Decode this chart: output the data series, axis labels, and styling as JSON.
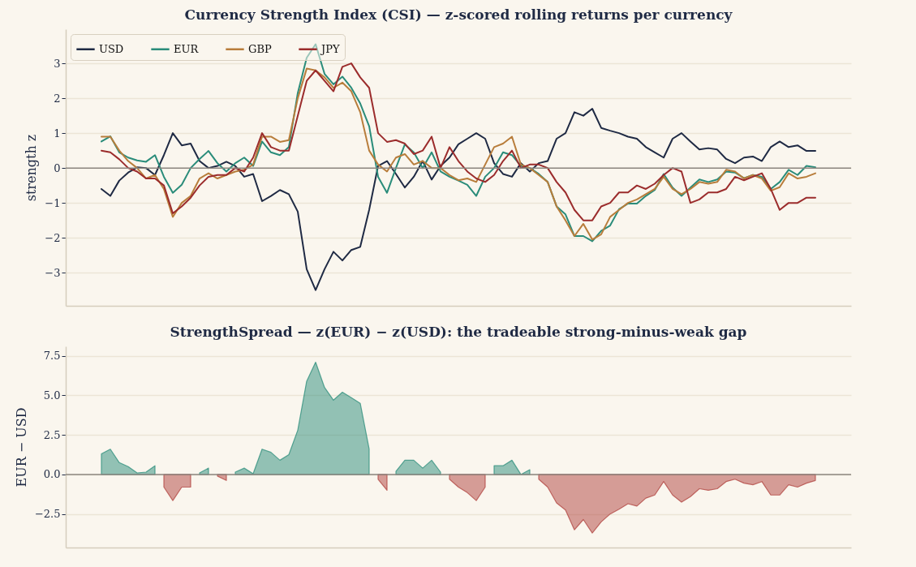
{
  "chart_data": [
    {
      "type": "line",
      "title": "Currency Strength Index (CSI) — z-scored rolling returns per currency",
      "ylabel": "strength z",
      "categories": [
        null,
        null,
        null,
        null,
        null,
        null,
        null,
        null,
        null,
        null,
        null,
        null,
        null,
        null,
        null,
        null,
        null,
        null,
        null,
        null,
        null,
        null,
        null,
        null,
        null,
        null,
        null,
        null,
        null,
        null,
        null,
        null,
        null,
        null,
        null,
        null,
        null,
        null,
        null,
        null,
        null,
        null,
        null,
        null,
        null,
        null,
        null,
        null,
        null,
        null,
        null,
        null,
        null,
        null,
        null,
        null,
        null,
        null,
        null,
        null,
        null,
        null,
        null,
        null,
        null,
        null,
        null,
        null,
        null,
        null,
        null,
        null,
        null,
        null,
        null,
        null,
        null,
        null,
        null,
        null,
        null
      ],
      "ylim": [
        -3.95,
        3.98
      ],
      "yticks": [
        -3,
        -2,
        -1,
        0,
        1,
        2,
        3
      ],
      "grid": "y",
      "legend": "top left",
      "tick_labels": "y",
      "ref_lines": [
        {
          "axis": "y",
          "value": 0,
          "color": "#8c8680"
        }
      ],
      "series": [
        {
          "name": "USD",
          "color": "#1f2a44",
          "values": [
            -0.6,
            -0.8,
            -0.36,
            -0.13,
            0.02,
            0,
            -0.2,
            0.37,
            1.0,
            0.65,
            0.7,
            0.2,
            0,
            0.06,
            0.18,
            0.06,
            -0.25,
            -0.17,
            -0.95,
            -0.8,
            -0.63,
            -0.75,
            -1.25,
            -2.9,
            -3.5,
            -2.9,
            -2.4,
            -2.65,
            -2.35,
            -2.26,
            -1.2,
            0.06,
            0.2,
            -0.17,
            -0.56,
            -0.25,
            0.2,
            -0.33,
            0.06,
            0.3,
            0.68,
            0.84,
            1.0,
            0.84,
            0.14,
            -0.17,
            -0.25,
            0.14,
            -0.1,
            0.14,
            0.2,
            0.84,
            1.0,
            1.6,
            1.5,
            1.7,
            1.15,
            1.07,
            1.0,
            0.9,
            0.84,
            0.6,
            0.45,
            0.3,
            0.84,
            1.0,
            0.76,
            0.53,
            0.57,
            0.53,
            0.26,
            0.14,
            0.3,
            0.33,
            0.2,
            0.6,
            0.76,
            0.6,
            0.65,
            0.49,
            0.49
          ]
        },
        {
          "name": "EUR",
          "color": "#2a8c7a",
          "values": [
            0.76,
            0.91,
            0.45,
            0.3,
            0.22,
            0.18,
            0.37,
            -0.25,
            -0.71,
            -0.48,
            0,
            0.26,
            0.49,
            0.14,
            -0.1,
            0.14,
            0.3,
            0.06,
            0.76,
            0.45,
            0.37,
            0.6,
            2.15,
            3.16,
            3.55,
            2.7,
            2.4,
            2.62,
            2.3,
            1.85,
            1.2,
            -0.25,
            -0.71,
            0,
            0.68,
            0.45,
            0,
            0.45,
            -0.1,
            -0.25,
            -0.36,
            -0.48,
            -0.8,
            -0.25,
            0,
            0.45,
            0.37,
            0.06,
            0,
            -0.17,
            -0.4,
            -1.1,
            -1.33,
            -1.95,
            -1.95,
            -2.1,
            -1.8,
            -1.65,
            -1.18,
            -1.02,
            -1.02,
            -0.8,
            -0.63,
            -0.17,
            -0.56,
            -0.8,
            -0.56,
            -0.33,
            -0.4,
            -0.33,
            -0.1,
            -0.13,
            -0.29,
            -0.2,
            -0.25,
            -0.6,
            -0.4,
            -0.05,
            -0.2,
            0.06,
            0.02
          ]
        },
        {
          "name": "GBP",
          "color": "#b87d3b",
          "values": [
            0.9,
            0.9,
            0.5,
            0.2,
            0,
            -0.3,
            -0.2,
            -0.6,
            -1.4,
            -1.0,
            -0.8,
            -0.3,
            -0.15,
            -0.3,
            -0.2,
            -0.1,
            -0.05,
            0.1,
            0.9,
            0.9,
            0.75,
            0.8,
            2.0,
            2.85,
            2.8,
            2.6,
            2.3,
            2.45,
            2.2,
            1.6,
            0.5,
            0.1,
            -0.1,
            0.3,
            0.4,
            0.1,
            0.2,
            0,
            0,
            -0.2,
            -0.35,
            -0.3,
            -0.4,
            0.1,
            0.6,
            0.7,
            0.9,
            0.1,
            0,
            -0.2,
            -0.4,
            -1.1,
            -1.5,
            -1.95,
            -1.6,
            -2.05,
            -1.9,
            -1.4,
            -1.2,
            -1.0,
            -0.9,
            -0.75,
            -0.6,
            -0.25,
            -0.6,
            -0.75,
            -0.6,
            -0.4,
            -0.45,
            -0.4,
            -0.05,
            -0.1,
            -0.3,
            -0.2,
            -0.3,
            -0.65,
            -0.55,
            -0.15,
            -0.3,
            -0.25,
            -0.15
          ]
        },
        {
          "name": "JPY",
          "color": "#9b2c2c",
          "values": [
            0.5,
            0.45,
            0.25,
            0,
            -0.1,
            -0.3,
            -0.3,
            -0.5,
            -1.3,
            -1.1,
            -0.85,
            -0.5,
            -0.25,
            -0.2,
            -0.2,
            0,
            -0.1,
            0.3,
            1.0,
            0.6,
            0.5,
            0.5,
            1.5,
            2.5,
            2.8,
            2.5,
            2.2,
            2.9,
            3.0,
            2.6,
            2.3,
            1.0,
            0.75,
            0.8,
            0.7,
            0.4,
            0.5,
            0.9,
            0,
            0.6,
            0.2,
            -0.1,
            -0.3,
            -0.4,
            -0.2,
            0.2,
            0.5,
            0,
            0.1,
            0.1,
            0,
            -0.4,
            -0.7,
            -1.2,
            -1.5,
            -1.5,
            -1.1,
            -1.0,
            -0.7,
            -0.7,
            -0.5,
            -0.6,
            -0.45,
            -0.2,
            0,
            -0.1,
            -1.0,
            -0.9,
            -0.7,
            -0.7,
            -0.6,
            -0.25,
            -0.35,
            -0.25,
            -0.15,
            -0.6,
            -1.2,
            -1.0,
            -1.0,
            -0.85,
            -0.85
          ]
        }
      ]
    },
    {
      "type": "area",
      "title": "StrengthSpread — z(EUR) − z(USD): the tradeable strong-minus-weak gap",
      "ylabel": "EUR − USD",
      "categories": [
        null,
        null,
        null,
        null,
        null,
        null,
        null,
        null,
        null,
        null,
        null,
        null,
        null,
        null,
        null,
        null,
        null,
        null,
        null,
        null,
        null,
        null,
        null,
        null,
        null,
        null,
        null,
        null,
        null,
        null,
        null,
        null,
        null,
        null,
        null,
        null,
        null,
        null,
        null,
        null,
        null,
        null,
        null,
        null,
        null,
        null,
        null,
        null,
        null,
        null,
        null,
        null,
        null,
        null,
        null,
        null,
        null,
        null,
        null,
        null,
        null,
        null,
        null,
        null,
        null,
        null,
        null,
        null,
        null,
        null,
        null,
        null,
        null,
        null,
        null,
        null,
        null,
        null,
        null,
        null,
        null
      ],
      "ylim": [
        -4.62,
        8.1
      ],
      "yticks": [
        {
          "value": -2.5,
          "label": "−2.5"
        },
        {
          "value": 0,
          "label": "0.0"
        },
        {
          "value": 2.5,
          "label": "2.5"
        },
        {
          "value": 5,
          "label": "5.0"
        },
        {
          "value": 7.5,
          "label": "7.5"
        }
      ],
      "grid": "y",
      "tick_labels": "y",
      "ref_lines": [
        {
          "axis": "y",
          "value": 0,
          "color": "#8c8680"
        }
      ],
      "series": [
        {
          "color": "#2a8c7a",
          "values": [
            1.3,
            1.6,
            0.75,
            0.5,
            0.1,
            0.15,
            0.55,
            null,
            null,
            null,
            null,
            0.1,
            0.4,
            null,
            null,
            0.15,
            0.4,
            0.05,
            1.6,
            1.4,
            0.9,
            1.25,
            2.8,
            5.9,
            7.1,
            5.5,
            4.7,
            5.2,
            4.85,
            4.5,
            1.6,
            null,
            null,
            0.2,
            0.9,
            0.9,
            0.4,
            0.9,
            0.15,
            null,
            null,
            null,
            null,
            null,
            0.55,
            0.55,
            0.9,
            0,
            0.3,
            null,
            null,
            null,
            null,
            null,
            null,
            null,
            null,
            null,
            null,
            null,
            null,
            null,
            null,
            null,
            null,
            null,
            null,
            null,
            null,
            null,
            null,
            null,
            null,
            null,
            null,
            null,
            null,
            null,
            null,
            null,
            null
          ]
        },
        {
          "color": "#b0413e",
          "values": [
            null,
            null,
            null,
            null,
            null,
            null,
            null,
            -0.8,
            -1.65,
            -0.8,
            -0.8,
            null,
            null,
            -0.1,
            -0.38,
            null,
            null,
            null,
            null,
            null,
            null,
            null,
            null,
            null,
            null,
            null,
            null,
            null,
            null,
            null,
            null,
            -0.3,
            -1.0,
            null,
            null,
            null,
            null,
            null,
            null,
            -0.3,
            -0.8,
            -1.15,
            -1.65,
            -0.8,
            null,
            null,
            null,
            null,
            null,
            -0.3,
            -0.8,
            -1.8,
            -2.25,
            -3.5,
            -2.85,
            -3.7,
            -3.0,
            -2.5,
            -2.2,
            -1.85,
            -2.0,
            -1.5,
            -1.3,
            -0.45,
            -1.3,
            -1.75,
            -1.4,
            -0.9,
            -1.0,
            -0.9,
            -0.45,
            -0.3,
            -0.55,
            -0.65,
            -0.45,
            -1.3,
            -1.3,
            -0.65,
            -0.8,
            -0.55,
            -0.38
          ]
        }
      ]
    }
  ]
}
